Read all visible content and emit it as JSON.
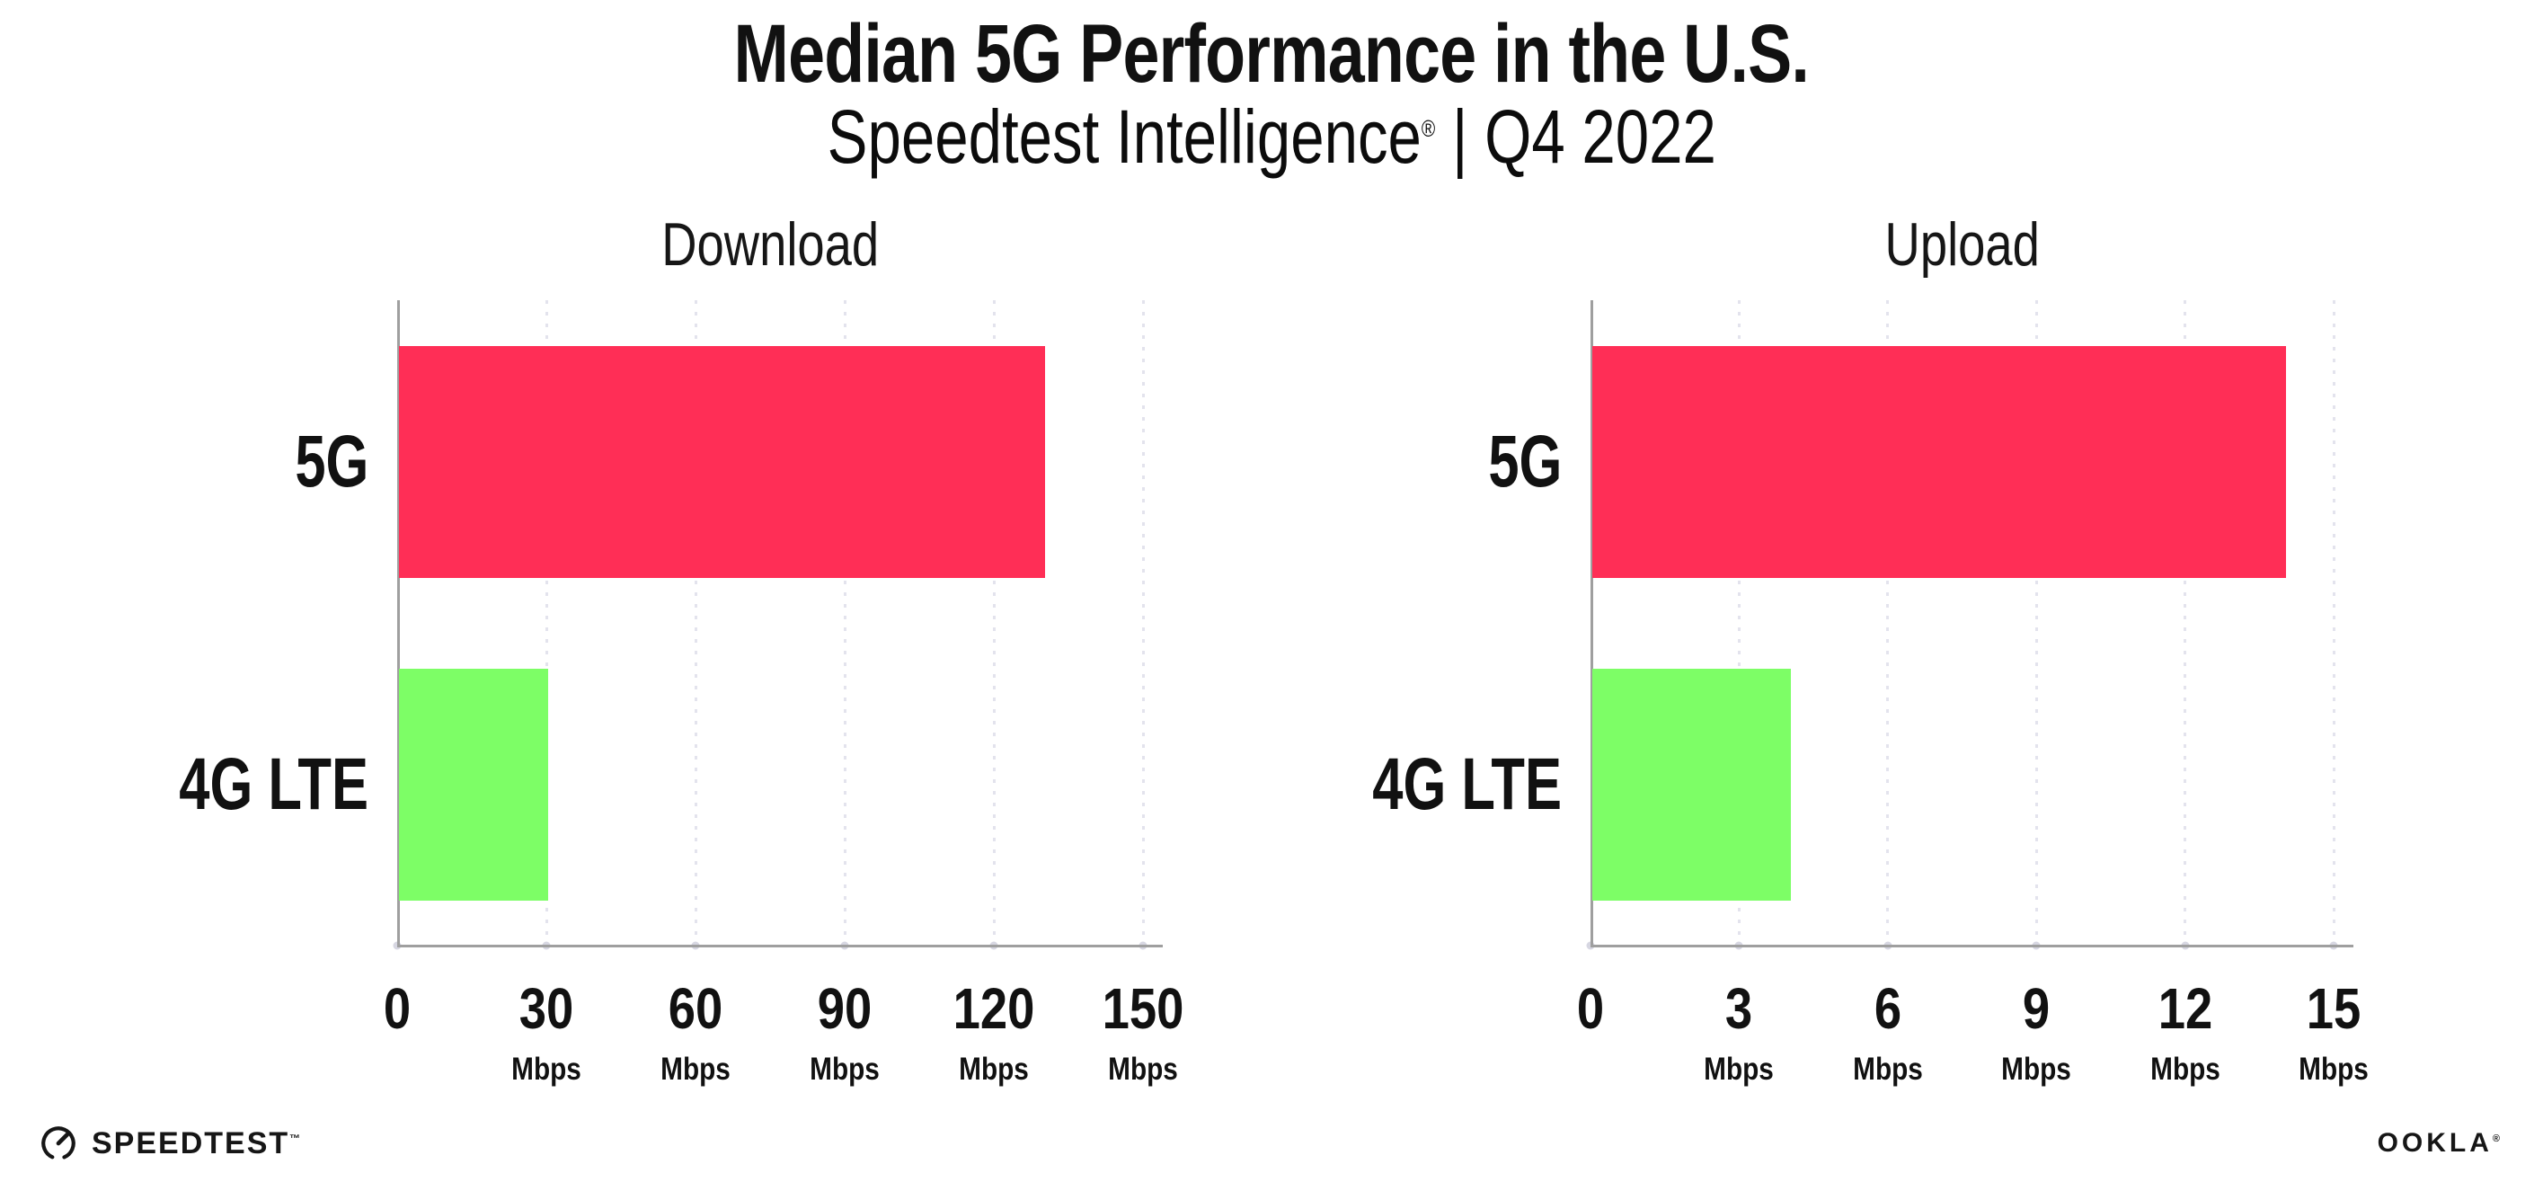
{
  "header": {
    "title": "Median 5G Performance in the U.S.",
    "subtitle_brand": "Speedtest Intelligence",
    "subtitle_reg": "®",
    "subtitle_rest": "| Q4 2022"
  },
  "footer": {
    "speedtest_wordmark": "SPEEDTEST",
    "speedtest_mark": "™",
    "ookla_wordmark": "OOKLA",
    "ookla_mark": "®"
  },
  "colors": {
    "bar_5g": "#FF2E56",
    "bar_4g_lte": "#7DFE66",
    "axis": "#9F9F9F",
    "grid": "#E3E3ED",
    "text": "#111111"
  },
  "chart_data": [
    {
      "id": "download",
      "type": "bar",
      "orientation": "horizontal",
      "title": "Download",
      "categories": [
        "5G",
        "4G LTE"
      ],
      "values": [
        130,
        30
      ],
      "unit": "Mbps",
      "xlim": [
        0,
        150
      ],
      "xticks": [
        0,
        30,
        60,
        90,
        120,
        150
      ],
      "grid": "dotted vertical gridlines at each tick",
      "legend": "none",
      "bar_colors": [
        "#FF2E56",
        "#7DFE66"
      ]
    },
    {
      "id": "upload",
      "type": "bar",
      "orientation": "horizontal",
      "title": "Upload",
      "categories": [
        "5G",
        "4G LTE"
      ],
      "values": [
        14,
        4
      ],
      "unit": "Mbps",
      "xlim": [
        0,
        15
      ],
      "xticks": [
        0,
        3,
        6,
        9,
        12,
        15
      ],
      "grid": "dotted vertical gridlines at each tick",
      "legend": "none",
      "bar_colors": [
        "#FF2E56",
        "#7DFE66"
      ]
    }
  ]
}
